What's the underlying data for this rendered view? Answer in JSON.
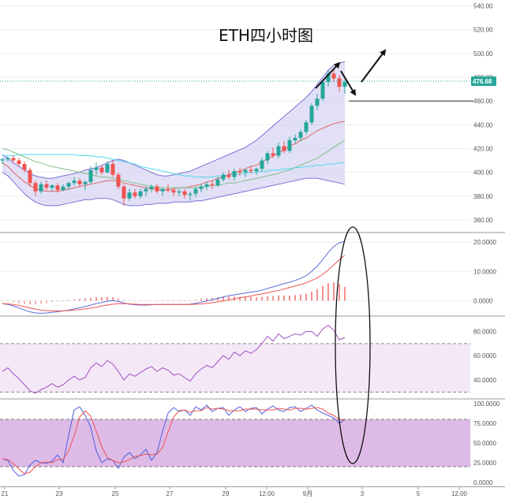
{
  "chart_data": [
    {
      "panel": "price",
      "type": "candlestick",
      "title": "ETH四小时图",
      "yticks": [
        360,
        380,
        400,
        420,
        440,
        460,
        480,
        500,
        520,
        540
      ],
      "ylim": [
        350,
        545
      ],
      "current_price": "476.68",
      "current_value": 476.68,
      "support_level": 460,
      "candles": [
        [
          410,
          412,
          407,
          411
        ],
        [
          411,
          413,
          409,
          412
        ],
        [
          412,
          414,
          408,
          410
        ],
        [
          410,
          412,
          405,
          407
        ],
        [
          407,
          409,
          400,
          402
        ],
        [
          402,
          404,
          388,
          391
        ],
        [
          391,
          393,
          380,
          384
        ],
        [
          384,
          392,
          382,
          390
        ],
        [
          390,
          393,
          385,
          387
        ],
        [
          387,
          390,
          384,
          389
        ],
        [
          389,
          391,
          383,
          385
        ],
        [
          385,
          390,
          384,
          388
        ],
        [
          388,
          392,
          385,
          391
        ],
        [
          391,
          396,
          389,
          393
        ],
        [
          393,
          395,
          388,
          390
        ],
        [
          390,
          393,
          385,
          392
        ],
        [
          392,
          405,
          390,
          402
        ],
        [
          402,
          408,
          398,
          404
        ],
        [
          404,
          406,
          398,
          400
        ],
        [
          400,
          409,
          399,
          407
        ],
        [
          407,
          410,
          396,
          398
        ],
        [
          398,
          400,
          386,
          388
        ],
        [
          388,
          390,
          372,
          378
        ],
        [
          378,
          386,
          376,
          383
        ],
        [
          383,
          386,
          378,
          380
        ],
        [
          380,
          386,
          378,
          384
        ],
        [
          384,
          388,
          380,
          386
        ],
        [
          386,
          390,
          383,
          388
        ],
        [
          388,
          390,
          382,
          384
        ],
        [
          384,
          387,
          380,
          386
        ],
        [
          386,
          390,
          383,
          385
        ],
        [
          385,
          387,
          380,
          383
        ],
        [
          383,
          386,
          380,
          384
        ],
        [
          384,
          386,
          378,
          381
        ],
        [
          381,
          384,
          376,
          382
        ],
        [
          382,
          388,
          379,
          386
        ],
        [
          386,
          390,
          383,
          388
        ],
        [
          388,
          392,
          385,
          390
        ],
        [
          390,
          393,
          386,
          389
        ],
        [
          389,
          396,
          388,
          394
        ],
        [
          394,
          400,
          392,
          398
        ],
        [
          398,
          402,
          394,
          396
        ],
        [
          396,
          403,
          393,
          401
        ],
        [
          401,
          404,
          397,
          400
        ],
        [
          400,
          403,
          396,
          402
        ],
        [
          402,
          405,
          399,
          401
        ],
        [
          401,
          404,
          398,
          403
        ],
        [
          403,
          412,
          401,
          410
        ],
        [
          410,
          418,
          407,
          416
        ],
        [
          416,
          421,
          412,
          414
        ],
        [
          414,
          425,
          412,
          422
        ],
        [
          422,
          426,
          416,
          418
        ],
        [
          418,
          430,
          416,
          427
        ],
        [
          427,
          432,
          424,
          429
        ],
        [
          429,
          436,
          426,
          434
        ],
        [
          434,
          444,
          432,
          442
        ],
        [
          442,
          458,
          440,
          456
        ],
        [
          456,
          466,
          452,
          462
        ],
        [
          462,
          478,
          460,
          476
        ],
        [
          476,
          486,
          472,
          483
        ],
        [
          483,
          486,
          476,
          479
        ],
        [
          479,
          482,
          468,
          472
        ],
        [
          472,
          478,
          466,
          476
        ]
      ],
      "overlays": [
        {
          "name": "bollinger_upper",
          "values": [
            415,
            412,
            408,
            405,
            402,
            399,
            397,
            396,
            395,
            395,
            396,
            397,
            398,
            399,
            400,
            402,
            403,
            404,
            406,
            408,
            410,
            411,
            410,
            408,
            406,
            404,
            402,
            400,
            398,
            397,
            397,
            398,
            399,
            400,
            401,
            403,
            405,
            407,
            409,
            411,
            413,
            415,
            417,
            419,
            421,
            424,
            427,
            431,
            435,
            439,
            443,
            447,
            451,
            455,
            459,
            463,
            468,
            474,
            480,
            486,
            490,
            492,
            493
          ]
        },
        {
          "name": "bollinger_lower",
          "values": [
            400,
            397,
            392,
            387,
            382,
            378,
            375,
            373,
            372,
            372,
            372,
            373,
            374,
            375,
            376,
            377,
            377,
            378,
            378,
            378,
            377,
            375,
            373,
            372,
            372,
            372,
            373,
            373,
            374,
            374,
            374,
            375,
            375,
            375,
            375,
            376,
            376,
            377,
            378,
            379,
            380,
            381,
            382,
            383,
            384,
            385,
            386,
            387,
            388,
            389,
            390,
            391,
            392,
            393,
            394,
            395,
            395,
            395,
            394,
            393,
            392,
            391,
            390
          ]
        },
        {
          "name": "bollinger_mid",
          "values": [
            408,
            405,
            400,
            396,
            392,
            389,
            386,
            385,
            384,
            384,
            384,
            385,
            386,
            387,
            388,
            389,
            390,
            391,
            392,
            393,
            393,
            393,
            391,
            390,
            389,
            388,
            387,
            386,
            386,
            385,
            385,
            386,
            387,
            387,
            388,
            389,
            390,
            392,
            393,
            395,
            396,
            398,
            400,
            401,
            403,
            405,
            406,
            409,
            411,
            414,
            416,
            419,
            422,
            424,
            427,
            429,
            432,
            435,
            437,
            439,
            441,
            442,
            443
          ]
        },
        {
          "name": "ma_slow_cyan",
          "values": [
            414,
            414,
            414,
            415,
            415,
            415,
            415,
            415,
            415,
            415,
            415,
            415,
            415,
            415,
            414,
            414,
            414,
            413,
            413,
            412,
            411,
            410,
            409,
            408,
            407,
            405,
            404,
            403,
            402,
            401,
            400,
            399,
            398,
            397,
            397,
            396,
            396,
            396,
            396,
            397,
            397,
            398,
            398,
            399,
            399,
            400,
            400,
            401,
            401,
            402,
            402,
            403,
            403,
            404,
            404,
            405,
            405,
            406,
            406,
            407,
            407,
            408,
            408
          ]
        },
        {
          "name": "ma_mid_green",
          "values": [
            420,
            419,
            417,
            415,
            413,
            411,
            409,
            408,
            406,
            405,
            404,
            403,
            402,
            401,
            400,
            399,
            398,
            397,
            396,
            396,
            395,
            394,
            393,
            392,
            391,
            390,
            389,
            388,
            388,
            387,
            387,
            387,
            387,
            387,
            387,
            387,
            388,
            388,
            389,
            389,
            390,
            391,
            391,
            392,
            393,
            394,
            395,
            396,
            397,
            398,
            399,
            401,
            402,
            404,
            406,
            408,
            410,
            412,
            415,
            418,
            421,
            424,
            427
          ]
        }
      ]
    },
    {
      "panel": "macd",
      "type": "line+bar",
      "yticks": [
        "20.0000",
        "10.0000",
        "0.0000"
      ],
      "ylim": [
        -5,
        23
      ],
      "series": [
        {
          "name": "macd_blue",
          "values": [
            -1.0,
            -1.3,
            -1.8,
            -2.5,
            -3.2,
            -3.8,
            -4.2,
            -4.3,
            -4.2,
            -4.0,
            -3.8,
            -3.5,
            -3.2,
            -2.8,
            -2.4,
            -2.0,
            -1.5,
            -1.0,
            -0.6,
            -0.2,
            0.0,
            -0.3,
            -0.8,
            -1.2,
            -1.4,
            -1.5,
            -1.5,
            -1.4,
            -1.3,
            -1.3,
            -1.3,
            -1.3,
            -1.3,
            -1.3,
            -1.2,
            -0.9,
            -0.5,
            -0.1,
            0.3,
            0.8,
            1.3,
            1.7,
            2.0,
            2.3,
            2.6,
            2.9,
            3.2,
            3.6,
            4.2,
            4.7,
            5.3,
            5.8,
            6.3,
            6.9,
            7.6,
            8.5,
            10.0,
            11.8,
            14.0,
            16.5,
            18.5,
            19.8,
            20.2
          ]
        },
        {
          "name": "signal_red",
          "values": [
            -1.0,
            -1.1,
            -1.3,
            -1.6,
            -2.0,
            -2.5,
            -2.9,
            -3.2,
            -3.4,
            -3.5,
            -3.5,
            -3.5,
            -3.4,
            -3.2,
            -3.0,
            -2.8,
            -2.5,
            -2.2,
            -1.8,
            -1.5,
            -1.2,
            -1.0,
            -1.0,
            -1.1,
            -1.2,
            -1.3,
            -1.3,
            -1.3,
            -1.3,
            -1.3,
            -1.3,
            -1.3,
            -1.3,
            -1.3,
            -1.3,
            -1.2,
            -1.1,
            -0.9,
            -0.7,
            -0.4,
            -0.1,
            0.3,
            0.6,
            1.0,
            1.3,
            1.6,
            2.0,
            2.3,
            2.7,
            3.1,
            3.5,
            4.0,
            4.5,
            5.0,
            5.5,
            6.1,
            6.9,
            7.8,
            9.0,
            10.5,
            12.2,
            14.0,
            15.5
          ]
        }
      ],
      "histogram": [
        0,
        -0.2,
        -0.5,
        -0.9,
        -1.2,
        -1.3,
        -1.3,
        -1.1,
        -0.8,
        -0.5,
        -0.3,
        0,
        0.2,
        0.4,
        0.6,
        0.8,
        1.0,
        1.2,
        1.2,
        1.3,
        1.2,
        0.7,
        0.2,
        -0.1,
        -0.2,
        -0.2,
        -0.2,
        -0.1,
        0,
        0,
        0,
        0,
        0,
        0,
        0.1,
        0.3,
        0.6,
        0.8,
        1.0,
        1.2,
        1.4,
        1.4,
        1.4,
        1.3,
        1.3,
        1.3,
        1.2,
        1.3,
        1.5,
        1.6,
        1.8,
        1.8,
        1.8,
        1.9,
        2.1,
        2.4,
        3.1,
        4.0,
        5.0,
        6.0,
        6.3,
        5.8,
        4.7
      ]
    },
    {
      "panel": "rsi",
      "type": "line",
      "yticks": [
        "80.0000",
        "60.0000",
        "40.0000"
      ],
      "ylim": [
        25,
        92
      ],
      "band": [
        30,
        70
      ],
      "series": [
        {
          "name": "rsi",
          "values": [
            47,
            50,
            45,
            41,
            36,
            31,
            29,
            32,
            34,
            37,
            34,
            36,
            40,
            43,
            40,
            42,
            50,
            54,
            51,
            56,
            53,
            47,
            40,
            45,
            43,
            46,
            49,
            51,
            47,
            50,
            48,
            44,
            45,
            42,
            39,
            45,
            49,
            52,
            50,
            55,
            60,
            57,
            63,
            60,
            64,
            62,
            65,
            70,
            76,
            72,
            78,
            74,
            76,
            78,
            77,
            80,
            80,
            76,
            82,
            85,
            81,
            73,
            75
          ]
        }
      ]
    },
    {
      "panel": "stochastic",
      "type": "line",
      "yticks": [
        "100.0000",
        "75.0000",
        "50.0000",
        "25.0000",
        "0.0000"
      ],
      "ylim": [
        -5,
        105
      ],
      "band": [
        20,
        80
      ],
      "series": [
        {
          "name": "stoch_k_blue",
          "values": [
            30,
            28,
            15,
            8,
            10,
            22,
            28,
            25,
            24,
            27,
            35,
            25,
            60,
            92,
            96,
            85,
            70,
            40,
            25,
            30,
            28,
            18,
            32,
            38,
            30,
            35,
            42,
            28,
            38,
            65,
            88,
            95,
            90,
            92,
            85,
            96,
            92,
            98,
            90,
            94,
            95,
            85,
            92,
            96,
            90,
            94,
            95,
            87,
            93,
            97,
            92,
            90,
            95,
            96,
            90,
            94,
            98,
            92,
            88,
            85,
            82,
            75,
            80
          ]
        },
        {
          "name": "stoch_d_red",
          "values": [
            30,
            29,
            24,
            17,
            11,
            13,
            20,
            25,
            26,
            25,
            29,
            29,
            40,
            59,
            83,
            91,
            84,
            65,
            45,
            32,
            28,
            25,
            26,
            29,
            33,
            34,
            36,
            35,
            36,
            44,
            64,
            83,
            91,
            92,
            89,
            91,
            91,
            95,
            93,
            94,
            93,
            91,
            91,
            91,
            93,
            93,
            93,
            92,
            92,
            92,
            94,
            93,
            92,
            94,
            94,
            93,
            94,
            95,
            93,
            88,
            85,
            80,
            79
          ]
        }
      ]
    }
  ],
  "x_axis": {
    "tick_labels": [
      "21",
      "23",
      "25",
      "27",
      "29",
      "12:00",
      "9月",
      "3",
      "5",
      "12:00"
    ]
  }
}
